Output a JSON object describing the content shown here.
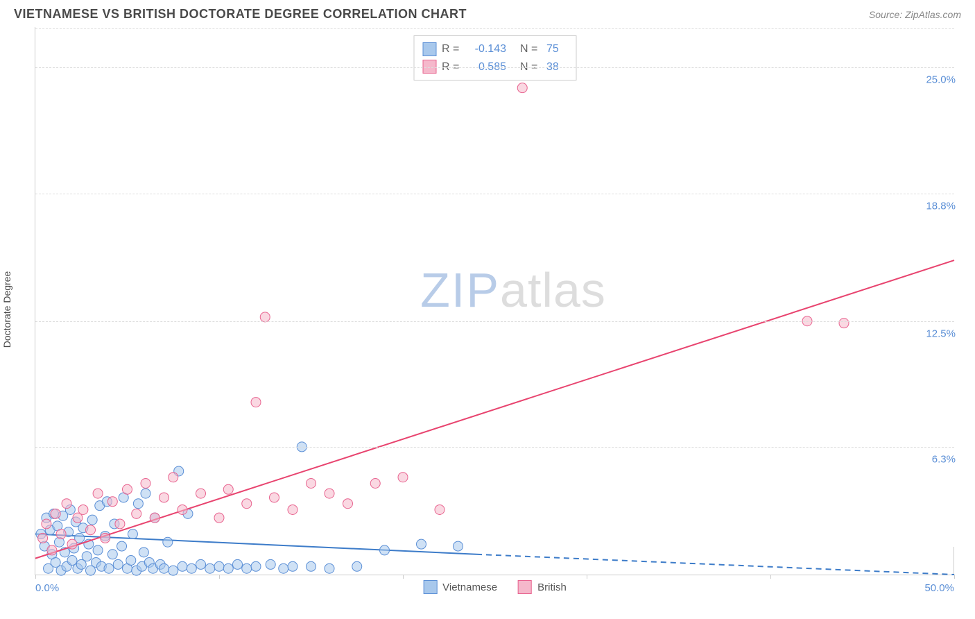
{
  "header": {
    "title": "VIETNAMESE VS BRITISH DOCTORATE DEGREE CORRELATION CHART",
    "source_label": "Source: ZipAtlas.com"
  },
  "ylabel": "Doctorate Degree",
  "watermark": {
    "part1": "ZIP",
    "part2": "atlas"
  },
  "chart": {
    "type": "scatter",
    "xlim": [
      0,
      50
    ],
    "ylim": [
      0,
      27
    ],
    "yticks": [
      {
        "value": 6.3,
        "label": "6.3%"
      },
      {
        "value": 12.5,
        "label": "12.5%"
      },
      {
        "value": 18.8,
        "label": "18.8%"
      },
      {
        "value": 25.0,
        "label": "25.0%"
      }
    ],
    "xticks_major": [
      0,
      10,
      20,
      30,
      40,
      50
    ],
    "xtick_labels": [
      {
        "value": 0,
        "label": "0.0%"
      },
      {
        "value": 50,
        "label": "50.0%"
      }
    ],
    "grid_color": "#dddddd",
    "background_color": "#ffffff",
    "series": [
      {
        "name": "Vietnamese",
        "color_fill": "#a8c8ec",
        "color_stroke": "#5b8fd6",
        "fill_opacity": 0.55,
        "marker_radius": 7,
        "R": "-0.143",
        "N": "75",
        "trend": {
          "solid": {
            "x1": 0,
            "y1": 2.0,
            "x2": 24,
            "y2": 1.0
          },
          "dashed": {
            "x1": 24,
            "y1": 1.0,
            "x2": 50,
            "y2": 0.0
          },
          "color": "#3d7cc9",
          "width": 2
        },
        "points": [
          [
            0.3,
            2.0
          ],
          [
            0.5,
            1.4
          ],
          [
            0.6,
            2.8
          ],
          [
            0.7,
            0.3
          ],
          [
            0.8,
            2.2
          ],
          [
            0.9,
            1.0
          ],
          [
            1.0,
            3.0
          ],
          [
            1.1,
            0.6
          ],
          [
            1.2,
            2.4
          ],
          [
            1.3,
            1.6
          ],
          [
            1.4,
            0.2
          ],
          [
            1.5,
            2.9
          ],
          [
            1.6,
            1.1
          ],
          [
            1.7,
            0.4
          ],
          [
            1.8,
            2.1
          ],
          [
            1.9,
            3.2
          ],
          [
            2.0,
            0.7
          ],
          [
            2.1,
            1.3
          ],
          [
            2.2,
            2.6
          ],
          [
            2.3,
            0.3
          ],
          [
            2.4,
            1.8
          ],
          [
            2.5,
            0.5
          ],
          [
            2.6,
            2.3
          ],
          [
            2.8,
            0.9
          ],
          [
            2.9,
            1.5
          ],
          [
            3.0,
            0.2
          ],
          [
            3.1,
            2.7
          ],
          [
            3.3,
            0.6
          ],
          [
            3.4,
            1.2
          ],
          [
            3.5,
            3.4
          ],
          [
            3.6,
            0.4
          ],
          [
            3.8,
            1.9
          ],
          [
            3.9,
            3.6
          ],
          [
            4.0,
            0.3
          ],
          [
            4.2,
            1.0
          ],
          [
            4.3,
            2.5
          ],
          [
            4.5,
            0.5
          ],
          [
            4.7,
            1.4
          ],
          [
            4.8,
            3.8
          ],
          [
            5.0,
            0.3
          ],
          [
            5.2,
            0.7
          ],
          [
            5.3,
            2.0
          ],
          [
            5.5,
            0.2
          ],
          [
            5.6,
            3.5
          ],
          [
            5.8,
            0.4
          ],
          [
            5.9,
            1.1
          ],
          [
            6.0,
            4.0
          ],
          [
            6.2,
            0.6
          ],
          [
            6.4,
            0.3
          ],
          [
            6.5,
            2.8
          ],
          [
            6.8,
            0.5
          ],
          [
            7.0,
            0.3
          ],
          [
            7.2,
            1.6
          ],
          [
            7.5,
            0.2
          ],
          [
            7.8,
            5.1
          ],
          [
            8.0,
            0.4
          ],
          [
            8.3,
            3.0
          ],
          [
            8.5,
            0.3
          ],
          [
            9.0,
            0.5
          ],
          [
            9.5,
            0.3
          ],
          [
            10.0,
            0.4
          ],
          [
            10.5,
            0.3
          ],
          [
            11.0,
            0.5
          ],
          [
            11.5,
            0.3
          ],
          [
            12.0,
            0.4
          ],
          [
            12.8,
            0.5
          ],
          [
            13.5,
            0.3
          ],
          [
            14.0,
            0.4
          ],
          [
            14.5,
            6.3
          ],
          [
            15.0,
            0.4
          ],
          [
            16.0,
            0.3
          ],
          [
            17.5,
            0.4
          ],
          [
            19.0,
            1.2
          ],
          [
            21.0,
            1.5
          ],
          [
            23.0,
            1.4
          ]
        ]
      },
      {
        "name": "British",
        "color_fill": "#f5b8cb",
        "color_stroke": "#e8638f",
        "fill_opacity": 0.55,
        "marker_radius": 7,
        "R": "0.585",
        "N": "38",
        "trend": {
          "solid": {
            "x1": 0,
            "y1": 0.8,
            "x2": 50,
            "y2": 15.5
          },
          "dashed": null,
          "color": "#e8446f",
          "width": 2
        },
        "points": [
          [
            0.4,
            1.8
          ],
          [
            0.6,
            2.5
          ],
          [
            0.9,
            1.2
          ],
          [
            1.1,
            3.0
          ],
          [
            1.4,
            2.0
          ],
          [
            1.7,
            3.5
          ],
          [
            2.0,
            1.5
          ],
          [
            2.3,
            2.8
          ],
          [
            2.6,
            3.2
          ],
          [
            3.0,
            2.2
          ],
          [
            3.4,
            4.0
          ],
          [
            3.8,
            1.8
          ],
          [
            4.2,
            3.6
          ],
          [
            4.6,
            2.5
          ],
          [
            5.0,
            4.2
          ],
          [
            5.5,
            3.0
          ],
          [
            6.0,
            4.5
          ],
          [
            6.5,
            2.8
          ],
          [
            7.0,
            3.8
          ],
          [
            7.5,
            4.8
          ],
          [
            8.0,
            3.2
          ],
          [
            9.0,
            4.0
          ],
          [
            10.0,
            2.8
          ],
          [
            10.5,
            4.2
          ],
          [
            11.5,
            3.5
          ],
          [
            12.0,
            8.5
          ],
          [
            12.5,
            12.7
          ],
          [
            13.0,
            3.8
          ],
          [
            14.0,
            3.2
          ],
          [
            15.0,
            4.5
          ],
          [
            16.0,
            4.0
          ],
          [
            17.0,
            3.5
          ],
          [
            18.5,
            4.5
          ],
          [
            20.0,
            4.8
          ],
          [
            22.0,
            3.2
          ],
          [
            26.5,
            24.0
          ],
          [
            42.0,
            12.5
          ],
          [
            44.0,
            12.4
          ]
        ]
      }
    ]
  },
  "legend_bottom": [
    {
      "name": "Vietnamese",
      "fill": "#a8c8ec",
      "stroke": "#5b8fd6"
    },
    {
      "name": "British",
      "fill": "#f5b8cb",
      "stroke": "#e8638f"
    }
  ]
}
